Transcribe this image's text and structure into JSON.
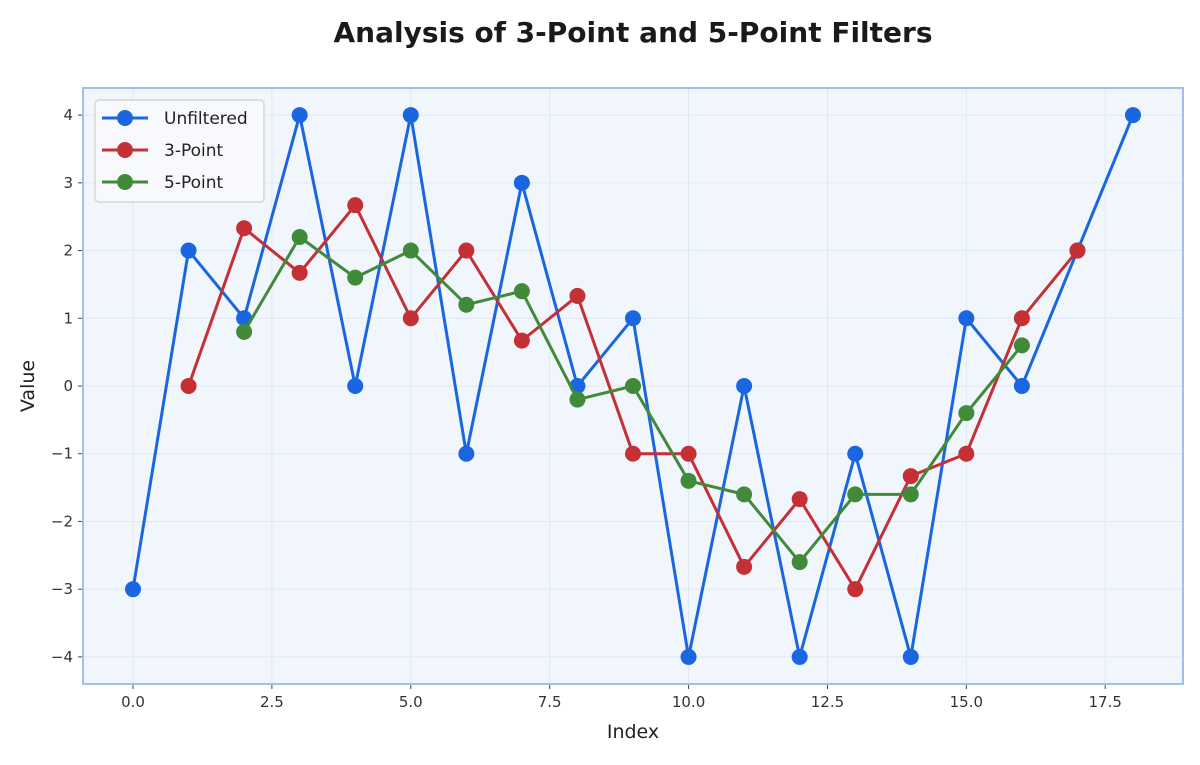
{
  "chart_data": {
    "type": "line",
    "title": "Analysis of 3-Point and 5-Point Filters",
    "xlabel": "Index",
    "ylabel": "Value",
    "xlim": [
      -0.9,
      18.9
    ],
    "ylim": [
      -4.4,
      4.4
    ],
    "xticks": [
      0.0,
      2.5,
      5.0,
      7.5,
      10.0,
      12.5,
      15.0,
      17.5
    ],
    "xtick_labels": [
      "0.0",
      "2.5",
      "5.0",
      "7.5",
      "10.0",
      "12.5",
      "15.0",
      "17.5"
    ],
    "yticks": [
      4,
      3,
      2,
      1,
      0,
      -1,
      -2,
      -3,
      -4
    ],
    "ytick_labels": [
      "4",
      "3",
      "2",
      "1",
      "0",
      "−1",
      "−2",
      "−3",
      "−4"
    ],
    "grid": true,
    "legend_position": "upper left",
    "series": [
      {
        "name": "Unfiltered",
        "color": "#1a66e0",
        "x": [
          0,
          1,
          2,
          3,
          4,
          5,
          6,
          7,
          8,
          9,
          10,
          11,
          12,
          13,
          14,
          15,
          16,
          17,
          18
        ],
        "values": [
          -3,
          2,
          1,
          4,
          0,
          4,
          -1,
          3,
          0,
          1,
          -4,
          0,
          -4,
          -1,
          -4,
          1,
          0,
          2,
          4
        ]
      },
      {
        "name": "3-Point",
        "color": "#c43035",
        "x": [
          1,
          2,
          3,
          4,
          5,
          6,
          7,
          8,
          9,
          10,
          11,
          12,
          13,
          14,
          15,
          16,
          17
        ],
        "values": [
          0,
          2.33,
          1.67,
          2.67,
          1,
          2,
          0.67,
          1.33,
          -1,
          -1,
          -2.67,
          -1.67,
          -3,
          -1.33,
          -1,
          1,
          2
        ]
      },
      {
        "name": "5-Point",
        "color": "#408a3a",
        "x": [
          2,
          3,
          4,
          5,
          6,
          7,
          8,
          9,
          10,
          11,
          12,
          13,
          14,
          15,
          16
        ],
        "values": [
          0.8,
          2.2,
          1.6,
          2,
          1.2,
          1.4,
          -0.2,
          0,
          -1.4,
          -1.6,
          -2.6,
          -1.6,
          -1.6,
          -0.4,
          0.6
        ]
      }
    ]
  }
}
